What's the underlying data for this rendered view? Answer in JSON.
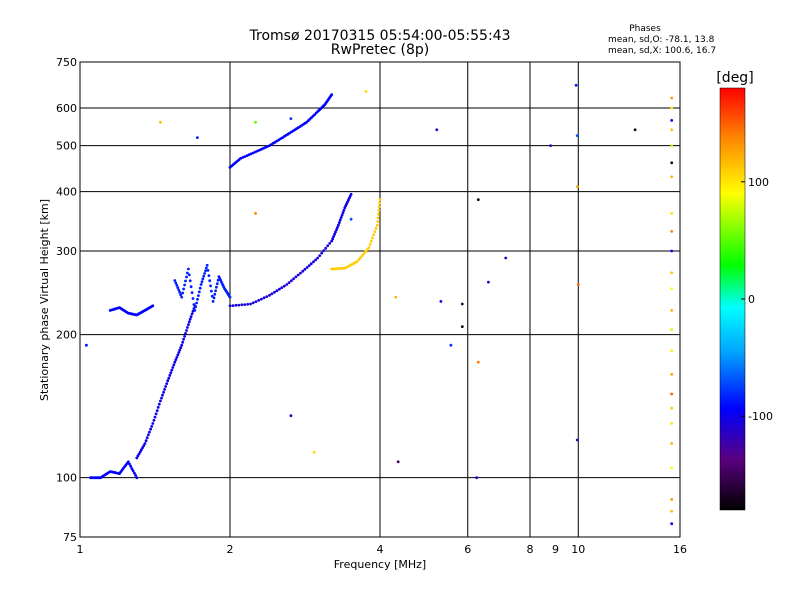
{
  "chart_data": {
    "type": "scatter",
    "title": "Tromsø 20170315 05:54:00-05:55:43",
    "subtitle": "RwPretec (8p)",
    "xlabel": "Frequency [MHz]",
    "ylabel": "Stationary phase Virtual Height [km]",
    "x_scale": "log",
    "y_scale": "log",
    "xlim": [
      1,
      16
    ],
    "ylim": [
      75,
      750
    ],
    "x_ticks": [
      1,
      2,
      4,
      6,
      8,
      9,
      10,
      16
    ],
    "x_tick_labels": [
      "1",
      "2",
      "4",
      "6",
      "8",
      "9",
      "10",
      "16"
    ],
    "x_grid": [
      2,
      4,
      6,
      8,
      10
    ],
    "y_ticks": [
      75,
      100,
      200,
      300,
      400,
      500,
      600,
      750
    ],
    "y_tick_labels": [
      "75",
      "100",
      "200",
      "300",
      "400",
      "500",
      "600",
      "750"
    ],
    "y_grid": [
      100,
      200,
      300,
      400,
      500,
      600
    ],
    "grid": true,
    "stats": {
      "heading": "Phases",
      "line_o": "mean, sd,O: -78.1, 13.8",
      "line_x": "mean, sd,X: 100.6, 16.7"
    },
    "colorbar": {
      "label": "[deg]",
      "range": [
        -180,
        180
      ],
      "ticks": [
        100,
        0,
        -100
      ],
      "tick_labels": [
        "100",
        "0",
        "-100"
      ]
    },
    "traces": [
      {
        "x": [
          2.0,
          2.1,
          2.25,
          2.4,
          2.55,
          2.7,
          2.85,
          3.0,
          3.1,
          3.2
        ],
        "y": [
          450,
          470,
          485,
          500,
          520,
          540,
          560,
          590,
          610,
          640
        ],
        "phase": -95
      },
      {
        "x": [
          2.0,
          2.2,
          2.4,
          2.6,
          2.8,
          3.0,
          3.2
        ],
        "y": [
          230,
          232,
          242,
          255,
          272,
          290,
          315
        ],
        "phase": -105
      },
      {
        "x": [
          3.2,
          3.3,
          3.4,
          3.5
        ],
        "y": [
          315,
          340,
          370,
          395
        ],
        "phase": -100
      },
      {
        "x": [
          3.2,
          3.4,
          3.6,
          3.8,
          3.95,
          4.0
        ],
        "y": [
          275,
          276,
          285,
          305,
          340,
          385
        ],
        "phase": 110
      },
      {
        "x": [
          1.05,
          1.1,
          1.15,
          1.2,
          1.25,
          1.3
        ],
        "y": [
          100,
          100,
          103,
          102,
          108,
          100
        ],
        "phase": -95
      },
      {
        "x": [
          1.3,
          1.35,
          1.4,
          1.45,
          1.5,
          1.55,
          1.6,
          1.65,
          1.7
        ],
        "y": [
          110,
          118,
          130,
          145,
          160,
          175,
          190,
          210,
          230
        ],
        "phase": -100
      },
      {
        "x": [
          1.55,
          1.6,
          1.65,
          1.7,
          1.75,
          1.8,
          1.85,
          1.9,
          1.95,
          2.0
        ],
        "y": [
          260,
          240,
          275,
          225,
          255,
          280,
          235,
          265,
          250,
          240
        ],
        "phase": -85
      },
      {
        "x": [
          1.15,
          1.2,
          1.25,
          1.3,
          1.35,
          1.4
        ],
        "y": [
          225,
          228,
          222,
          220,
          225,
          230
        ],
        "phase": -95
      }
    ],
    "points": [
      {
        "x": 1.03,
        "y": 190,
        "phase": -90
      },
      {
        "x": 1.45,
        "y": 560,
        "phase": 115
      },
      {
        "x": 1.72,
        "y": 520,
        "phase": -85
      },
      {
        "x": 2.25,
        "y": 560,
        "phase": 50
      },
      {
        "x": 2.25,
        "y": 360,
        "phase": 140
      },
      {
        "x": 2.65,
        "y": 570,
        "phase": -80
      },
      {
        "x": 2.65,
        "y": 135,
        "phase": -110
      },
      {
        "x": 2.95,
        "y": 113,
        "phase": 105
      },
      {
        "x": 3.5,
        "y": 350,
        "phase": -70
      },
      {
        "x": 3.75,
        "y": 650,
        "phase": 105
      },
      {
        "x": 4.3,
        "y": 240,
        "phase": 120
      },
      {
        "x": 4.35,
        "y": 108,
        "phase": -150
      },
      {
        "x": 5.2,
        "y": 540,
        "phase": -105
      },
      {
        "x": 5.3,
        "y": 235,
        "phase": -105
      },
      {
        "x": 5.55,
        "y": 190,
        "phase": -80
      },
      {
        "x": 5.85,
        "y": 232,
        "phase": -155
      },
      {
        "x": 5.85,
        "y": 208,
        "phase": -170
      },
      {
        "x": 6.3,
        "y": 385,
        "phase": -175
      },
      {
        "x": 6.3,
        "y": 175,
        "phase": 140
      },
      {
        "x": 6.25,
        "y": 100,
        "phase": -110
      },
      {
        "x": 6.6,
        "y": 258,
        "phase": -110
      },
      {
        "x": 7.15,
        "y": 290,
        "phase": -115
      },
      {
        "x": 8.8,
        "y": 500,
        "phase": -120
      },
      {
        "x": 9.9,
        "y": 670,
        "phase": -85
      },
      {
        "x": 9.95,
        "y": 525,
        "phase": -70
      },
      {
        "x": 9.95,
        "y": 410,
        "phase": 120
      },
      {
        "x": 10.0,
        "y": 255,
        "phase": 150
      },
      {
        "x": 9.95,
        "y": 120,
        "phase": -120
      },
      {
        "x": 13.0,
        "y": 540,
        "phase": -170
      }
    ],
    "column": {
      "x": 15.4,
      "y": [
        630,
        600,
        565,
        540,
        500,
        460,
        430,
        360,
        330,
        300,
        270,
        250,
        225,
        205,
        185,
        165,
        150,
        140,
        130,
        118,
        105,
        90,
        85,
        80
      ],
      "phases": [
        130,
        100,
        -100,
        115,
        70,
        -170,
        120,
        100,
        140,
        -100,
        110,
        90,
        120,
        80,
        95,
        125,
        150,
        110,
        100,
        120,
        90,
        130,
        115,
        -100
      ]
    }
  }
}
